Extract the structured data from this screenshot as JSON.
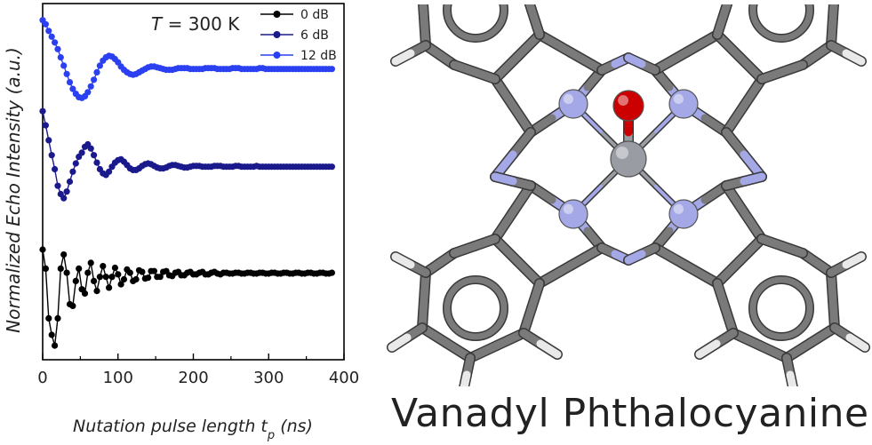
{
  "chart_data": {
    "type": "line",
    "annotation": {
      "variable": "T",
      "text": " = 300 K"
    },
    "xlabel": {
      "main": "Nutation pulse length",
      "var": "t",
      "sub": "p",
      "unit": "(ns)"
    },
    "ylabel": "Normalized Echo Intensity (a.u.)",
    "xlim": [
      0,
      400
    ],
    "xticks": [
      "0",
      "100",
      "200",
      "300",
      "400"
    ],
    "yaxis_scale": "arbitrary, traces vertically offset",
    "grid": false,
    "legend_position": "top-right",
    "series": [
      {
        "name": "0 dB",
        "color": "#000000",
        "x": [
          0,
          4,
          8,
          12,
          16,
          20,
          24,
          28,
          32,
          36,
          40,
          44,
          48,
          52,
          56,
          60,
          64,
          68,
          72,
          76,
          80,
          84,
          88,
          92,
          96,
          100,
          104,
          108,
          112,
          116,
          120,
          124,
          128,
          132,
          136,
          140,
          144,
          148,
          152,
          156,
          160,
          164,
          168,
          172,
          176,
          180,
          184,
          188,
          192,
          196,
          200,
          204,
          208,
          212,
          216,
          220,
          224,
          228,
          232,
          236,
          240,
          244,
          248,
          252,
          256,
          260,
          264,
          268,
          272,
          276,
          280,
          284,
          288,
          292,
          296,
          300,
          304,
          308,
          312,
          316,
          320,
          324,
          328,
          332,
          336,
          340,
          344,
          348,
          352,
          356,
          360,
          364,
          368,
          372,
          376,
          380,
          384
        ],
        "y": [
          0.28,
          0.05,
          -0.55,
          -0.75,
          -0.88,
          -0.55,
          0.05,
          0.22,
          0.0,
          -0.38,
          -0.4,
          -0.1,
          0.05,
          -0.2,
          -0.25,
          0.0,
          0.12,
          -0.1,
          -0.22,
          -0.05,
          0.08,
          -0.05,
          -0.18,
          -0.05,
          0.06,
          -0.02,
          -0.14,
          -0.08,
          0.04,
          0.0,
          -0.1,
          -0.08,
          0.03,
          0.01,
          -0.07,
          -0.06,
          0.02,
          0.02,
          -0.05,
          -0.05,
          0.01,
          0.02,
          -0.03,
          -0.04,
          0.0,
          0.01,
          -0.03,
          -0.03,
          0.0,
          0.01,
          -0.02,
          -0.02,
          0.0,
          0.01,
          -0.02,
          -0.02,
          0.0,
          0.01,
          -0.01,
          -0.02,
          0.0,
          0.0,
          -0.01,
          -0.01,
          0.0,
          0.0,
          -0.01,
          -0.01,
          0.0,
          0.0,
          -0.01,
          -0.01,
          0.0,
          0.0,
          -0.01,
          -0.01,
          0.0,
          0.0,
          -0.01,
          -0.01,
          0.0,
          0.0,
          -0.01,
          -0.01,
          0.0,
          0.0,
          -0.01,
          -0.01,
          0.0,
          0.0,
          -0.01,
          -0.01,
          0.0,
          0.0,
          -0.01,
          -0.01,
          0.0
        ]
      },
      {
        "name": "6 dB",
        "color": "#1a1a8c",
        "x": [
          0,
          4,
          8,
          12,
          16,
          20,
          24,
          28,
          32,
          36,
          40,
          44,
          48,
          52,
          56,
          60,
          64,
          68,
          72,
          76,
          80,
          84,
          88,
          92,
          96,
          100,
          104,
          108,
          112,
          116,
          120,
          124,
          128,
          132,
          136,
          140,
          144,
          148,
          152,
          156,
          160,
          164,
          168,
          172,
          176,
          180,
          184,
          188,
          192,
          196,
          200,
          204,
          208,
          212,
          216,
          220,
          224,
          228,
          232,
          236,
          240,
          244,
          248,
          252,
          256,
          260,
          264,
          268,
          272,
          276,
          280,
          284,
          288,
          292,
          296,
          300,
          304,
          308,
          312,
          316,
          320,
          324,
          328,
          332,
          336,
          340,
          344,
          348,
          352,
          356,
          360,
          364,
          368,
          372,
          376,
          380,
          384
        ],
        "y": [
          1.95,
          1.78,
          1.6,
          1.42,
          1.25,
          1.05,
          0.95,
          0.9,
          0.98,
          1.1,
          1.22,
          1.32,
          1.4,
          1.45,
          1.52,
          1.55,
          1.5,
          1.42,
          1.33,
          1.25,
          1.2,
          1.18,
          1.22,
          1.28,
          1.33,
          1.36,
          1.37,
          1.34,
          1.3,
          1.26,
          1.24,
          1.24,
          1.26,
          1.29,
          1.31,
          1.32,
          1.31,
          1.29,
          1.27,
          1.26,
          1.26,
          1.27,
          1.29,
          1.3,
          1.3,
          1.29,
          1.28,
          1.27,
          1.27,
          1.28,
          1.29,
          1.29,
          1.29,
          1.28,
          1.28,
          1.28,
          1.28,
          1.29,
          1.29,
          1.29,
          1.28,
          1.28,
          1.28,
          1.28,
          1.29,
          1.29,
          1.28,
          1.28,
          1.28,
          1.28,
          1.28,
          1.29,
          1.28,
          1.28,
          1.28,
          1.28,
          1.28,
          1.28,
          1.28,
          1.28,
          1.28,
          1.28,
          1.28,
          1.28,
          1.28,
          1.28,
          1.28,
          1.28,
          1.28,
          1.28,
          1.28,
          1.28,
          1.28,
          1.28,
          1.28,
          1.28,
          1.28
        ]
      },
      {
        "name": "12 dB",
        "color": "#2b40f0",
        "x": [
          0,
          4,
          8,
          12,
          16,
          20,
          24,
          28,
          32,
          36,
          40,
          44,
          48,
          52,
          56,
          60,
          64,
          68,
          72,
          76,
          80,
          84,
          88,
          92,
          96,
          100,
          104,
          108,
          112,
          116,
          120,
          124,
          128,
          132,
          136,
          140,
          144,
          148,
          152,
          156,
          160,
          164,
          168,
          172,
          176,
          180,
          184,
          188,
          192,
          196,
          200,
          204,
          208,
          212,
          216,
          220,
          224,
          228,
          232,
          236,
          240,
          244,
          248,
          252,
          256,
          260,
          264,
          268,
          272,
          276,
          280,
          284,
          288,
          292,
          296,
          300,
          304,
          308,
          312,
          316,
          320,
          324,
          328,
          332,
          336,
          340,
          344,
          348,
          352,
          356,
          360,
          364,
          368,
          372,
          376,
          380,
          384
        ],
        "y": [
          3.05,
          3.0,
          2.92,
          2.85,
          2.78,
          2.7,
          2.6,
          2.5,
          2.4,
          2.3,
          2.22,
          2.16,
          2.12,
          2.11,
          2.13,
          2.18,
          2.25,
          2.33,
          2.42,
          2.5,
          2.56,
          2.6,
          2.62,
          2.61,
          2.58,
          2.54,
          2.49,
          2.45,
          2.42,
          2.4,
          2.39,
          2.4,
          2.42,
          2.44,
          2.46,
          2.48,
          2.49,
          2.49,
          2.48,
          2.47,
          2.46,
          2.45,
          2.45,
          2.45,
          2.46,
          2.47,
          2.47,
          2.47,
          2.47,
          2.46,
          2.46,
          2.46,
          2.46,
          2.46,
          2.47,
          2.47,
          2.47,
          2.47,
          2.46,
          2.46,
          2.46,
          2.46,
          2.46,
          2.47,
          2.47,
          2.47,
          2.46,
          2.46,
          2.46,
          2.46,
          2.46,
          2.46,
          2.47,
          2.47,
          2.46,
          2.46,
          2.46,
          2.46,
          2.46,
          2.46,
          2.46,
          2.46,
          2.46,
          2.46,
          2.46,
          2.46,
          2.46,
          2.46,
          2.46,
          2.46,
          2.46,
          2.46,
          2.46,
          2.46,
          2.46,
          2.46,
          2.46
        ]
      }
    ]
  },
  "molecule": {
    "caption": "Vanadyl Phthalocyanine",
    "colors": {
      "carbon": "#7a7a7a",
      "nitrogen": "#a4a8e6",
      "hydrogen": "#e9e9e9",
      "oxygen": "#cc0000",
      "vanadium": "#9a9ca4"
    }
  }
}
